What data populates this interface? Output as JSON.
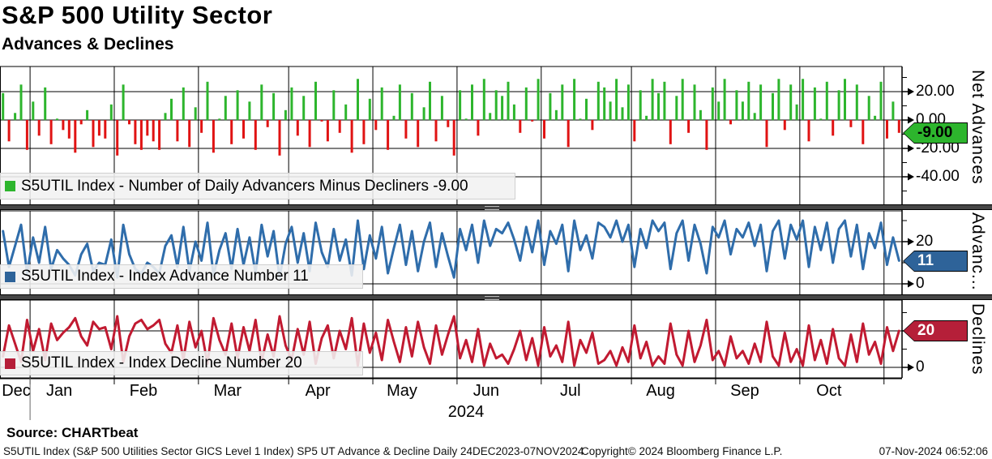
{
  "header": {
    "title": "S&P 500 Utility Sector",
    "subtitle": "Advances & Declines"
  },
  "colors": {
    "advance_green": "#2db52d",
    "decline_bar_red": "#e01313",
    "advance_line_blue": "#2f6dab",
    "advance_box_blue": "#2e6399",
    "decline_line_red": "#c11a31",
    "decline_box_red": "#b51f39",
    "separator_gray": "#464646",
    "grid_black": "#000000"
  },
  "chart_data": {
    "type": "multi-panel",
    "title": "S&P 500 Utility Sector - Advances & Declines",
    "frequency": "Daily",
    "period": "24DEC2023-07NOV2024",
    "x": {
      "n": 150,
      "year_label": "2024",
      "months": [
        {
          "label": "Dec",
          "i0": 0,
          "i1": 5
        },
        {
          "label": "Jan",
          "i0": 5,
          "i1": 19
        },
        {
          "label": "Feb",
          "i0": 19,
          "i1": 33
        },
        {
          "label": "Mar",
          "i0": 33,
          "i1": 48
        },
        {
          "label": "Apr",
          "i0": 48,
          "i1": 62
        },
        {
          "label": "May",
          "i0": 62,
          "i1": 76
        },
        {
          "label": "Jun",
          "i0": 76,
          "i1": 90
        },
        {
          "label": "Jul",
          "i0": 90,
          "i1": 105
        },
        {
          "label": "Aug",
          "i0": 105,
          "i1": 119
        },
        {
          "label": "Sep",
          "i0": 119,
          "i1": 133
        },
        {
          "label": "Oct",
          "i0": 133,
          "i1": 147
        },
        {
          "label": "",
          "i0": 147,
          "i1": 150
        }
      ]
    },
    "panels": [
      {
        "id": "net",
        "type": "bar",
        "axis_title": "Net Advances",
        "legend": "S5UTIL Index - Number of Daily Advancers Minus Decliners -9.00",
        "last_label": "-9.00",
        "last_value": -9,
        "ylim": [
          -60,
          38
        ],
        "yticks_major": [
          {
            "v": 20,
            "label": "20.00"
          },
          {
            "v": 0,
            "label": "0.00"
          },
          {
            "v": -20,
            "label": "-20.00"
          },
          {
            "v": -40,
            "label": "-40.00"
          }
        ],
        "yticks_minor": [
          30,
          10,
          -10,
          -30,
          -50
        ],
        "values": [
          19,
          -15,
          5,
          25,
          -21,
          13,
          -11,
          23,
          -17,
          1,
          -7,
          -13,
          -23,
          -3,
          7,
          -19,
          -11,
          -13,
          11,
          -25,
          25,
          -3,
          -17,
          -21,
          -11,
          -15,
          -21,
          5,
          15,
          -15,
          23,
          -19,
          9,
          -9,
          27,
          -23,
          1,
          17,
          -17,
          21,
          -13,
          13,
          -21,
          25,
          -5,
          19,
          -25,
          7,
          23,
          -11,
          17,
          -19,
          27,
          -1,
          -15,
          21,
          -9,
          11,
          -23,
          29,
          -17,
          15,
          -7,
          23,
          -21,
          3,
          25,
          -13,
          19,
          -19,
          9,
          27,
          -15,
          17,
          -5,
          -25,
          21,
          1,
          25,
          -11,
          29,
          5,
          21,
          17,
          27,
          11,
          -9,
          23,
          -1,
          29,
          -13,
          19,
          7,
          25,
          -19,
          29,
          1,
          15,
          -7,
          27,
          23,
          13,
          29,
          9,
          25,
          -15,
          21,
          3,
          29,
          19,
          27,
          -17,
          17,
          29,
          -9,
          25,
          7,
          -21,
          23,
          13,
          29,
          -3,
          21,
          13,
          27,
          5,
          25,
          -19,
          19,
          29,
          -7,
          25,
          11,
          29,
          -15,
          23,
          1,
          27,
          -11,
          21,
          29,
          -5,
          25,
          -17,
          17,
          3,
          27,
          -13,
          13,
          -9
        ]
      },
      {
        "id": "adv",
        "type": "line",
        "axis_title": "Advanc...",
        "legend": "S5UTIL Index - Index Advance Number 11",
        "last_label": "11",
        "last_value": 11,
        "ylim": [
          -7,
          35
        ],
        "yticks_major": [
          {
            "v": 20,
            "label": "20"
          },
          {
            "v": 0,
            "label": "0"
          }
        ],
        "yticks_minor": [
          30,
          10
        ],
        "values": [
          25,
          8,
          18,
          28,
          5,
          22,
          10,
          27,
          7,
          16,
          12,
          9,
          4,
          14,
          19,
          6,
          10,
          9,
          21,
          3,
          28,
          14,
          7,
          5,
          10,
          8,
          5,
          18,
          23,
          8,
          27,
          6,
          20,
          11,
          29,
          4,
          16,
          24,
          7,
          26,
          9,
          22,
          5,
          28,
          13,
          25,
          3,
          19,
          27,
          10,
          24,
          6,
          29,
          15,
          8,
          26,
          11,
          21,
          4,
          30,
          7,
          23,
          12,
          27,
          5,
          17,
          28,
          9,
          25,
          6,
          20,
          29,
          8,
          24,
          13,
          3,
          26,
          16,
          28,
          10,
          30,
          18,
          26,
          24,
          29,
          21,
          11,
          27,
          15,
          30,
          9,
          25,
          19,
          28,
          6,
          30,
          16,
          23,
          12,
          29,
          27,
          22,
          30,
          20,
          28,
          8,
          26,
          17,
          30,
          25,
          29,
          7,
          24,
          30,
          11,
          28,
          19,
          5,
          27,
          22,
          30,
          14,
          26,
          22,
          29,
          18,
          28,
          6,
          25,
          30,
          12,
          28,
          21,
          30,
          8,
          27,
          16,
          29,
          10,
          26,
          30,
          13,
          28,
          7,
          24,
          17,
          29,
          9,
          22,
          11
        ]
      },
      {
        "id": "dec",
        "type": "line",
        "axis_title": "Declines",
        "legend": "S5UTIL Index - Index Decline Number 20",
        "last_label": "20",
        "last_value": 20,
        "ylim": [
          -6,
          37
        ],
        "yticks_major": [
          {
            "v": 20,
            "label": "20"
          },
          {
            "v": 0,
            "label": "0"
          }
        ],
        "yticks_minor": [
          30,
          10
        ],
        "values": [
          6,
          23,
          13,
          3,
          26,
          9,
          21,
          4,
          24,
          15,
          19,
          22,
          27,
          17,
          12,
          25,
          21,
          22,
          10,
          28,
          3,
          17,
          24,
          26,
          21,
          23,
          26,
          13,
          8,
          23,
          4,
          25,
          11,
          20,
          2,
          27,
          15,
          7,
          24,
          5,
          22,
          9,
          26,
          3,
          18,
          6,
          28,
          12,
          4,
          21,
          7,
          25,
          2,
          16,
          23,
          5,
          20,
          10,
          27,
          1,
          24,
          8,
          19,
          4,
          26,
          14,
          3,
          22,
          6,
          25,
          11,
          2,
          23,
          7,
          18,
          28,
          5,
          15,
          3,
          21,
          1,
          13,
          5,
          7,
          2,
          10,
          20,
          4,
          16,
          1,
          22,
          6,
          12,
          3,
          25,
          1,
          15,
          8,
          19,
          2,
          4,
          9,
          1,
          11,
          3,
          23,
          5,
          14,
          1,
          6,
          2,
          24,
          7,
          1,
          20,
          3,
          12,
          26,
          4,
          9,
          1,
          17,
          5,
          9,
          2,
          13,
          3,
          25,
          6,
          1,
          19,
          3,
          10,
          1,
          23,
          4,
          15,
          2,
          21,
          5,
          1,
          18,
          3,
          24,
          7,
          14,
          2,
          22,
          9,
          20
        ]
      }
    ]
  },
  "footer": {
    "source": "Source: CHARTbeat",
    "disclaimer": "S5UTIL Index (S&P 500 Utilities Sector GICS Level 1 Index) SP5 UT Advance & Decline  Daily 24DEC2023-07NOV2024",
    "copyright": "Copyright© 2024 Bloomberg Finance L.P.",
    "timestamp": "07-Nov-2024 06:52:06"
  }
}
